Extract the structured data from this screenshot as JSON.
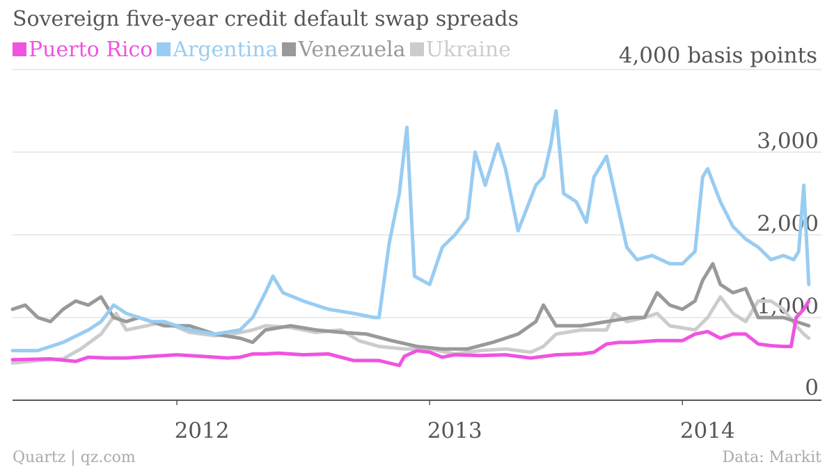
{
  "title": "Sovereign five-year credit default swap spreads",
  "unit_label": "4,000 basis points",
  "credit": "Quartz | qz.com",
  "source": "Data: Markit",
  "chart_data": {
    "type": "line",
    "title": "Sovereign five-year credit default swap spreads",
    "ylabel": "basis points",
    "ylim": [
      0,
      4000
    ],
    "xlim": [
      2011.35,
      2014.55
    ],
    "y_ticks": [
      {
        "value": 0,
        "label": "0"
      },
      {
        "value": 1000,
        "label": "1,000"
      },
      {
        "value": 2000,
        "label": "2,000"
      },
      {
        "value": 3000,
        "label": "3,000"
      }
    ],
    "x_ticks": [
      {
        "value": 2012,
        "label": "2012"
      },
      {
        "value": 2013,
        "label": "2013"
      },
      {
        "value": 2014,
        "label": "2014"
      }
    ],
    "grid": true,
    "legend_position": "top-left",
    "series": [
      {
        "name": "Ukraine",
        "color": "#cccccc",
        "x": [
          2011.35,
          2011.45,
          2011.55,
          2011.62,
          2011.7,
          2011.76,
          2011.8,
          2011.88,
          2011.95,
          2012.05,
          2012.15,
          2012.22,
          2012.3,
          2012.35,
          2012.45,
          2012.55,
          2012.65,
          2012.72,
          2012.8,
          2012.9,
          2013.0,
          2013.1,
          2013.2,
          2013.3,
          2013.4,
          2013.45,
          2013.5,
          2013.6,
          2013.7,
          2013.73,
          2013.78,
          2013.85,
          2013.9,
          2013.95,
          2014.05,
          2014.1,
          2014.15,
          2014.2,
          2014.25,
          2014.3,
          2014.35,
          2014.4,
          2014.45,
          2014.48,
          2014.5
        ],
        "values": [
          450,
          480,
          500,
          620,
          800,
          1050,
          850,
          900,
          950,
          820,
          780,
          800,
          850,
          900,
          880,
          820,
          850,
          720,
          650,
          620,
          620,
          560,
          600,
          620,
          580,
          650,
          800,
          850,
          850,
          1050,
          950,
          1000,
          1050,
          900,
          850,
          1000,
          1250,
          1050,
          950,
          1200,
          1200,
          1100,
          900,
          800,
          750
        ]
      },
      {
        "name": "Venezuela",
        "color": "#999999",
        "x": [
          2011.35,
          2011.4,
          2011.45,
          2011.5,
          2011.55,
          2011.6,
          2011.65,
          2011.7,
          2011.75,
          2011.8,
          2011.85,
          2011.9,
          2011.95,
          2012.05,
          2012.15,
          2012.25,
          2012.3,
          2012.35,
          2012.45,
          2012.55,
          2012.65,
          2012.75,
          2012.85,
          2012.95,
          2013.05,
          2013.15,
          2013.25,
          2013.35,
          2013.42,
          2013.45,
          2013.5,
          2013.6,
          2013.7,
          2013.8,
          2013.85,
          2013.9,
          2013.95,
          2014.0,
          2014.05,
          2014.08,
          2014.12,
          2014.15,
          2014.2,
          2014.25,
          2014.3,
          2014.35,
          2014.4,
          2014.45,
          2014.5
        ],
        "values": [
          1100,
          1150,
          1000,
          950,
          1100,
          1200,
          1150,
          1250,
          1000,
          950,
          1000,
          950,
          900,
          900,
          800,
          750,
          700,
          850,
          900,
          850,
          820,
          800,
          720,
          650,
          620,
          620,
          700,
          800,
          950,
          1150,
          900,
          900,
          950,
          1000,
          1000,
          1300,
          1150,
          1100,
          1200,
          1450,
          1650,
          1400,
          1300,
          1350,
          1000,
          1000,
          1000,
          950,
          900
        ]
      },
      {
        "name": "Argentina",
        "color": "#99ccf2",
        "x": [
          2011.35,
          2011.45,
          2011.55,
          2011.65,
          2011.7,
          2011.75,
          2011.8,
          2011.85,
          2011.9,
          2011.95,
          2012.05,
          2012.15,
          2012.25,
          2012.3,
          2012.35,
          2012.38,
          2012.42,
          2012.5,
          2012.6,
          2012.7,
          2012.78,
          2012.8,
          2012.84,
          2012.88,
          2012.91,
          2012.94,
          2013.0,
          2013.05,
          2013.1,
          2013.15,
          2013.18,
          2013.22,
          2013.27,
          2013.3,
          2013.35,
          2013.42,
          2013.45,
          2013.48,
          2013.5,
          2013.53,
          2013.58,
          2013.62,
          2013.65,
          2013.7,
          2013.78,
          2013.82,
          2013.88,
          2013.95,
          2014.0,
          2014.05,
          2014.08,
          2014.1,
          2014.15,
          2014.2,
          2014.25,
          2014.3,
          2014.35,
          2014.4,
          2014.44,
          2014.46,
          2014.48,
          2014.5
        ],
        "values": [
          600,
          600,
          700,
          850,
          950,
          1150,
          1050,
          1000,
          950,
          950,
          850,
          800,
          850,
          1000,
          1300,
          1500,
          1300,
          1200,
          1100,
          1050,
          1000,
          1000,
          1900,
          2500,
          3300,
          1500,
          1400,
          1850,
          2000,
          2200,
          3000,
          2600,
          3100,
          2800,
          2050,
          2600,
          2700,
          3100,
          3500,
          2500,
          2400,
          2150,
          2700,
          2950,
          1850,
          1700,
          1750,
          1650,
          1650,
          1800,
          2700,
          2800,
          2400,
          2100,
          1950,
          1850,
          1700,
          1750,
          1700,
          1800,
          2600,
          1400
        ]
      },
      {
        "name": "Puerto Rico",
        "color": "#f053e0",
        "x": [
          2011.35,
          2011.5,
          2011.6,
          2011.65,
          2011.72,
          2011.8,
          2011.9,
          2012.0,
          2012.1,
          2012.2,
          2012.25,
          2012.3,
          2012.35,
          2012.4,
          2012.5,
          2012.6,
          2012.7,
          2012.8,
          2012.88,
          2012.9,
          2012.95,
          2013.0,
          2013.05,
          2013.1,
          2013.2,
          2013.3,
          2013.4,
          2013.5,
          2013.6,
          2013.65,
          2013.7,
          2013.75,
          2013.8,
          2013.85,
          2013.9,
          2013.95,
          2014.0,
          2014.05,
          2014.1,
          2014.15,
          2014.2,
          2014.25,
          2014.3,
          2014.35,
          2014.4,
          2014.43,
          2014.45,
          2014.48,
          2014.5
        ],
        "values": [
          490,
          500,
          470,
          520,
          510,
          510,
          530,
          550,
          530,
          510,
          520,
          560,
          560,
          570,
          550,
          560,
          480,
          480,
          420,
          530,
          600,
          580,
          520,
          550,
          540,
          550,
          510,
          550,
          560,
          580,
          680,
          700,
          700,
          710,
          720,
          720,
          720,
          800,
          830,
          750,
          800,
          800,
          680,
          660,
          650,
          650,
          1000,
          1100,
          1200
        ]
      }
    ]
  }
}
